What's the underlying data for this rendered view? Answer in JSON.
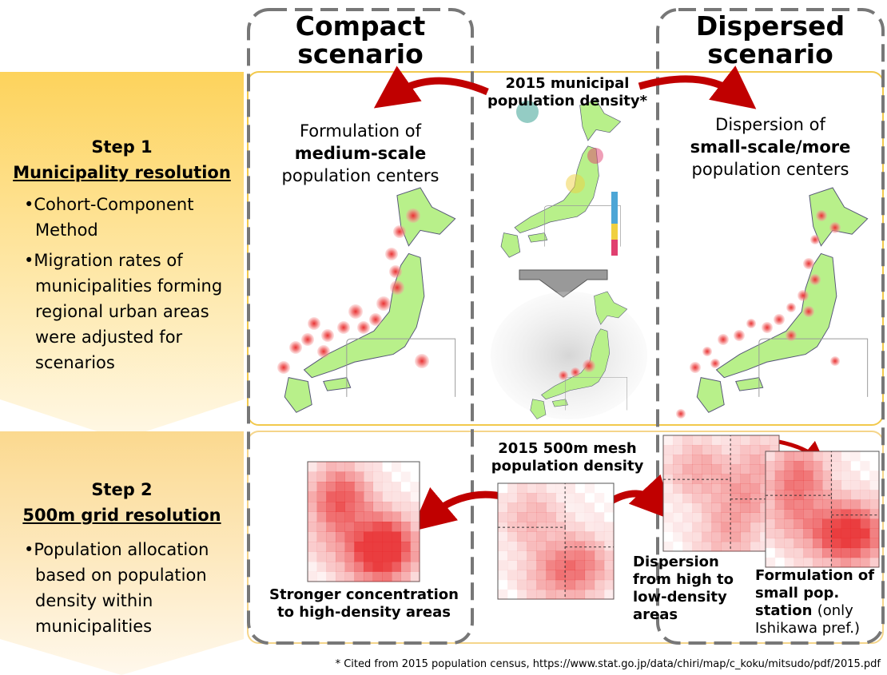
{
  "scenarios": {
    "compact": [
      "Compact",
      "scenario"
    ],
    "dispersed": [
      "Dispersed",
      "scenario"
    ]
  },
  "step1": {
    "title": "Step 1",
    "subtitle": "Municipality resolution",
    "bullets": [
      "Cohort-Component Method",
      "Migration rates of municipalities forming regional urban areas were adjusted for scenarios"
    ]
  },
  "step2": {
    "title": "Step 2",
    "subtitle": "500m grid resolution",
    "bullets": [
      "Population allocation based on population density within municipalities"
    ]
  },
  "step1_center": [
    "2015 municipal",
    "population density*"
  ],
  "compact_step1": [
    "Formulation of",
    "medium-scale",
    "population centers"
  ],
  "dispersed_step1": [
    "Dispersion of",
    "small-scale/more",
    "population centers"
  ],
  "step2_center": [
    "2015 500m mesh",
    "population density"
  ],
  "compact_step2": [
    "Stronger concentration",
    "to high-density areas"
  ],
  "dispersed_step2a": [
    "Dispersion",
    "from high to",
    "low-density",
    "areas"
  ],
  "dispersed_step2b": [
    "Formulation of",
    "small pop.",
    "station",
    "(only",
    "Ishikawa pref.)"
  ],
  "footnote": "* Cited from 2015 population census,  https://www.stat.go.jp/data/chiri/map/c_koku/mitsudo/pdf/2015.pdf"
}
